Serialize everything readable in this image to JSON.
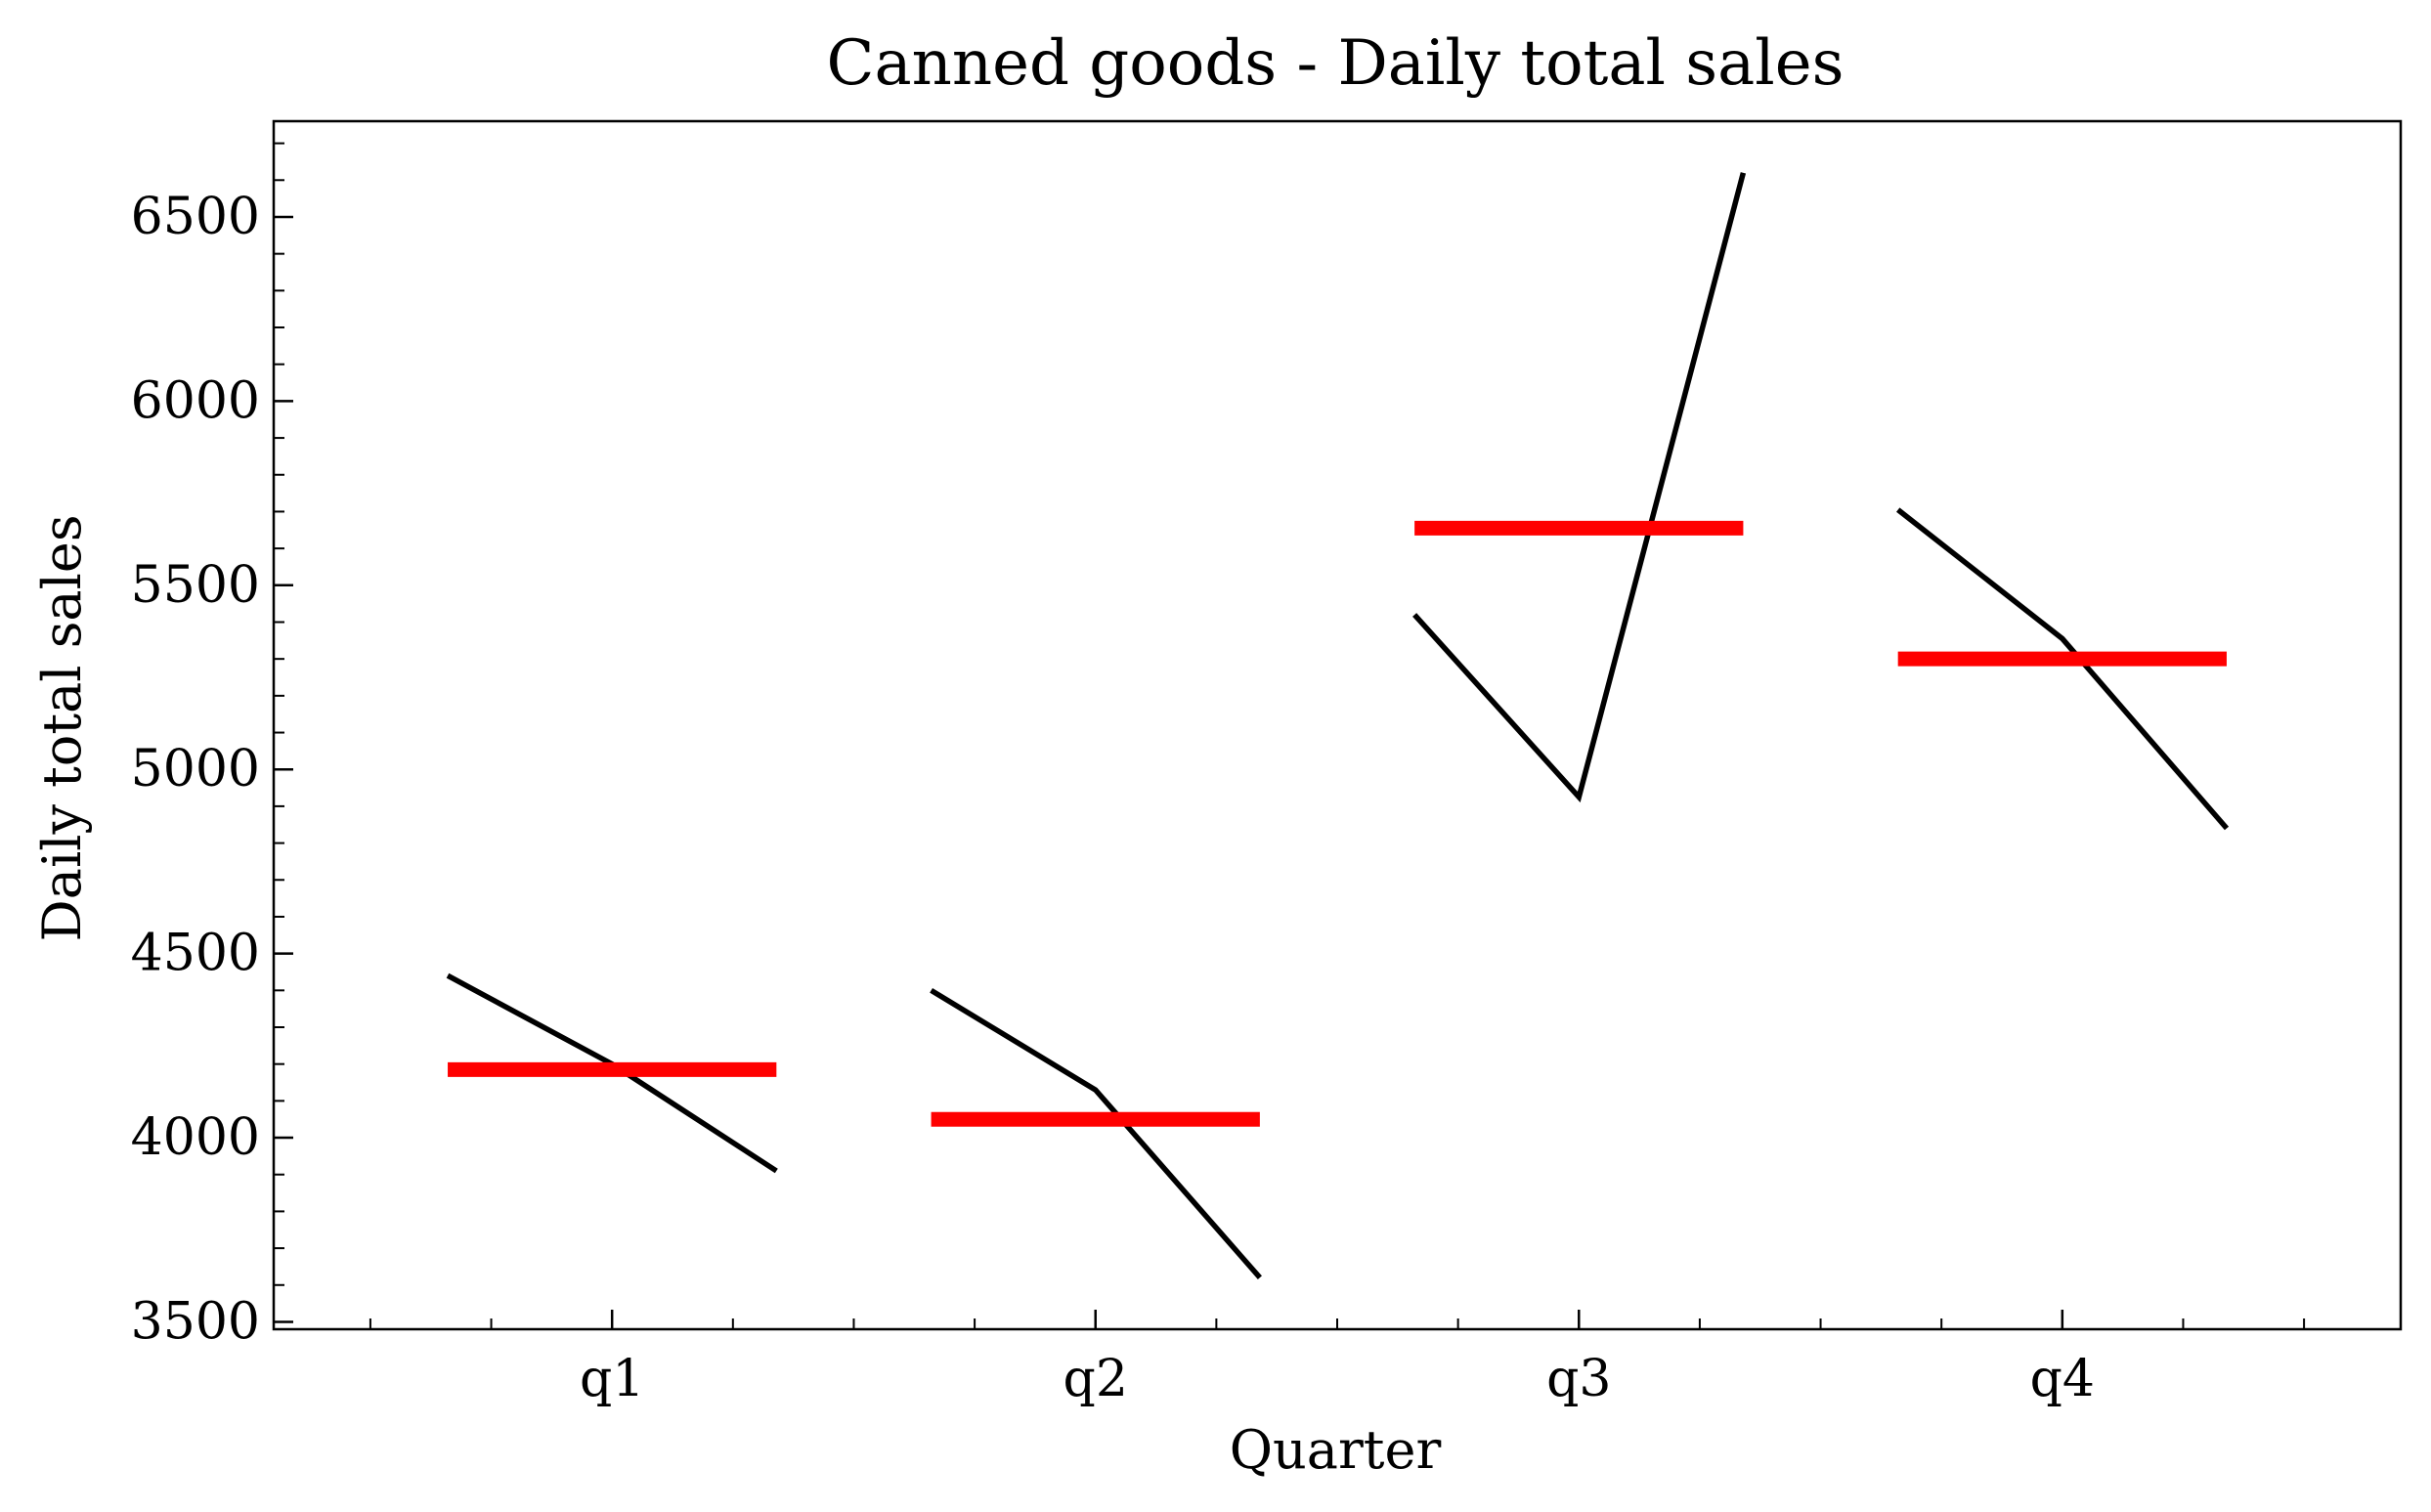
{
  "chart_data": {
    "type": "line",
    "title": "Canned goods - Daily total sales",
    "xlabel": "Quarter",
    "ylabel": "Daily total sales",
    "categories": [
      "q1",
      "q2",
      "q3",
      "q4"
    ],
    "ylim": [
      3480,
      6760
    ],
    "y_ticks": [
      3500,
      4000,
      4500,
      5000,
      5500,
      6000,
      6500
    ],
    "y_tick_labels": [
      "3500",
      "4000",
      "4500",
      "5000",
      "5500",
      "6000",
      "6500"
    ],
    "grid": false,
    "subseries": [
      {
        "category": "q1",
        "values": [
          4440,
          4200,
          3910
        ],
        "mean": 4185
      },
      {
        "category": "q2",
        "values": [
          4400,
          4130,
          3620
        ],
        "mean": 4050
      },
      {
        "category": "q3",
        "values": [
          5420,
          4925,
          6620
        ],
        "mean": 5655
      },
      {
        "category": "q4",
        "values": [
          5705,
          5355,
          4840
        ],
        "mean": 5300
      }
    ],
    "colors": {
      "line": "#000000",
      "mean": "#ff0000"
    }
  }
}
